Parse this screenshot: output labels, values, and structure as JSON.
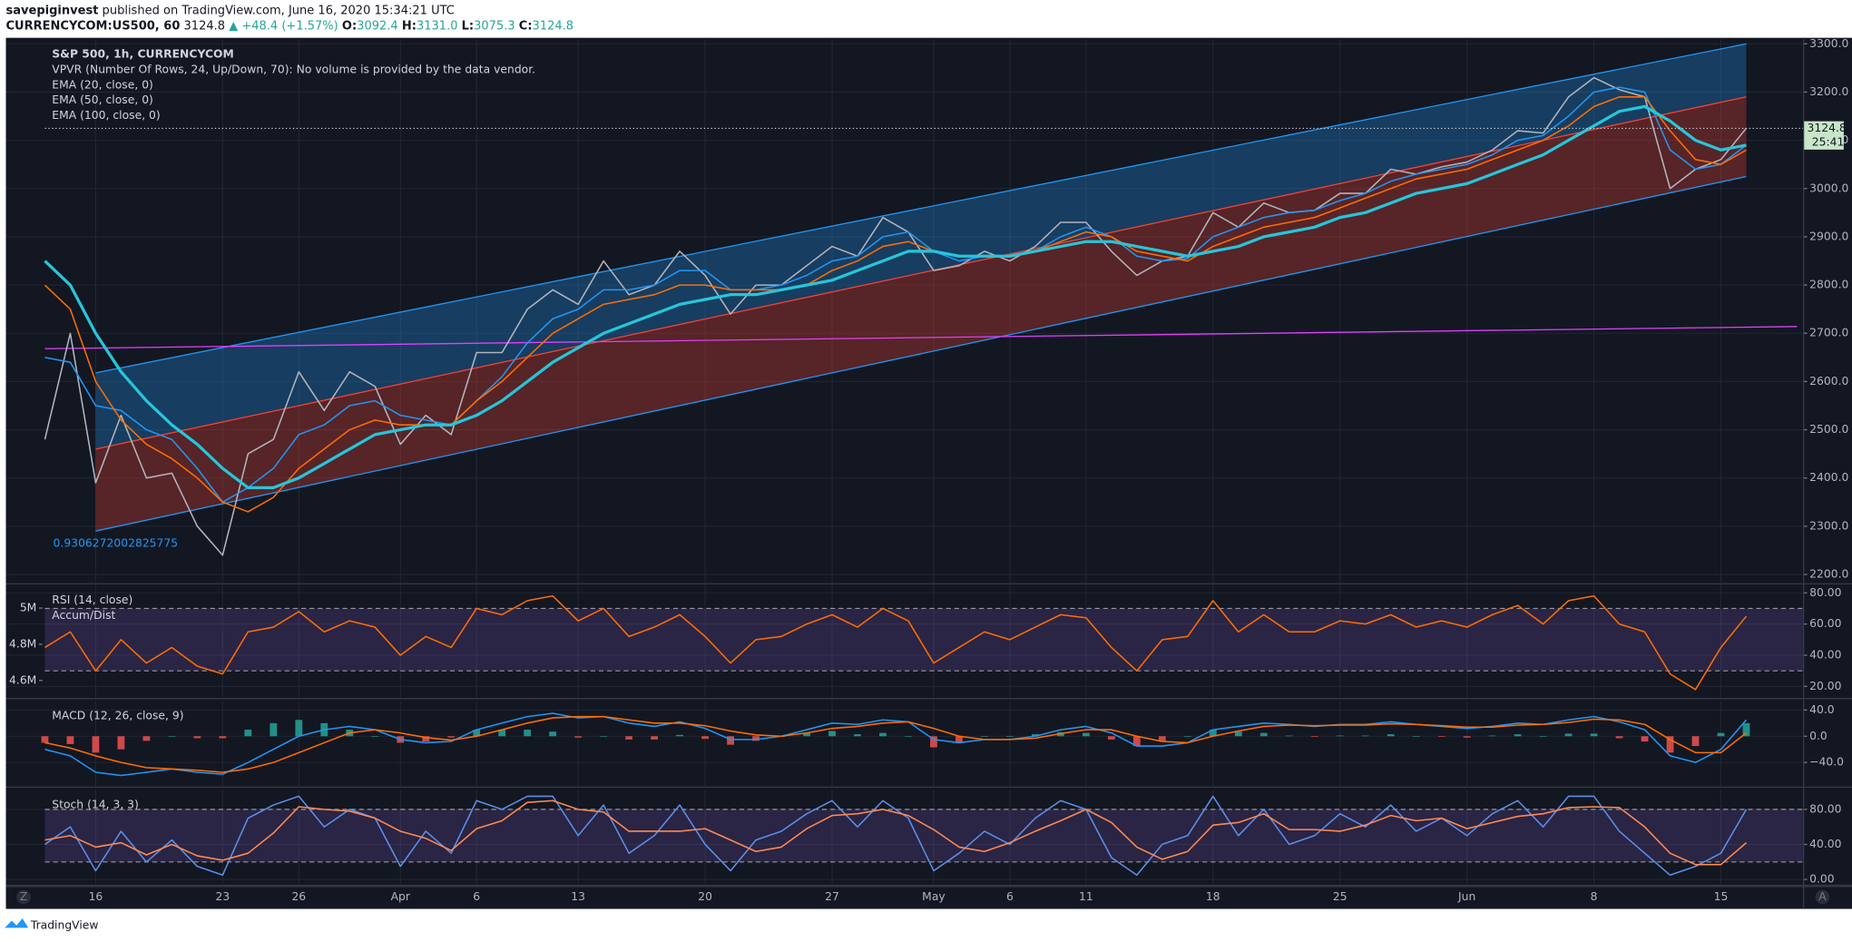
{
  "header": {
    "author": "savepiginvest",
    "published": "published on TradingView.com, June 16, 2020 15:34:21 UTC",
    "symbol": "CURRENCYCOM:US500, 60",
    "price": "3124.8",
    "change": "▲ +48.4 (+1.57%)",
    "ohlc": [
      {
        "label": "O:",
        "value": "3092.4"
      },
      {
        "label": "H:",
        "value": "3131.0"
      },
      {
        "label": "L:",
        "value": "3075.3"
      },
      {
        "label": "C:",
        "value": "3124.8"
      }
    ]
  },
  "chart_data": [
    {
      "type": "line",
      "categories": [
        null,
        null,
        "16",
        null,
        null,
        null,
        null,
        "23",
        null,
        null,
        "26",
        null,
        null,
        null,
        "Apr",
        null,
        null,
        "6",
        null,
        null,
        null,
        "13",
        null,
        null,
        null,
        null,
        "20",
        null,
        null,
        null,
        null,
        "27",
        null,
        null,
        null,
        "May",
        null,
        null,
        "6",
        null,
        null,
        "11",
        null,
        null,
        null,
        null,
        "18",
        null,
        null,
        null,
        null,
        "25",
        null,
        null,
        null,
        null,
        "Jun",
        null,
        null,
        null,
        null,
        "8",
        null,
        null,
        null,
        null,
        "15",
        null
      ],
      "series": [
        {
          "name": "S&P 500, 1h, CURRENCYCOM",
          "color": "#b0b4bd",
          "values": [
            2480,
            2700,
            2390,
            2530,
            2400,
            2410,
            2300,
            2240,
            2450,
            2480,
            2620,
            2540,
            2620,
            2590,
            2470,
            2530,
            2490,
            2660,
            2660,
            2750,
            2790,
            2760,
            2850,
            2780,
            2800,
            2870,
            2820,
            2740,
            2800,
            2800,
            2840,
            2880,
            2860,
            2940,
            2910,
            2830,
            2840,
            2870,
            2850,
            2880,
            2930,
            2930,
            2870,
            2820,
            2850,
            2860,
            2950,
            2920,
            2970,
            2950,
            2955,
            2990,
            2990,
            3040,
            3030,
            3045,
            3055,
            3080,
            3120,
            3115,
            3190,
            3230,
            3205,
            3190,
            3000,
            3040,
            3060,
            3125
          ]
        },
        {
          "name": "EMA (20, close, 0)",
          "color": "#2196f3",
          "values": [
            2650,
            2640,
            2550,
            2540,
            2500,
            2480,
            2420,
            2350,
            2380,
            2420,
            2490,
            2510,
            2550,
            2560,
            2530,
            2520,
            2510,
            2560,
            2610,
            2680,
            2730,
            2750,
            2790,
            2790,
            2800,
            2830,
            2830,
            2790,
            2790,
            2800,
            2820,
            2850,
            2860,
            2900,
            2910,
            2870,
            2850,
            2860,
            2860,
            2870,
            2900,
            2920,
            2900,
            2860,
            2850,
            2855,
            2900,
            2920,
            2940,
            2950,
            2955,
            2975,
            2990,
            3015,
            3030,
            3040,
            3050,
            3070,
            3100,
            3110,
            3150,
            3200,
            3210,
            3200,
            3080,
            3040,
            3050,
            3090
          ]
        },
        {
          "name": "EMA (50, close, 0)",
          "color": "#ff6d00",
          "values": [
            2800,
            2750,
            2600,
            2520,
            2470,
            2440,
            2400,
            2350,
            2330,
            2360,
            2420,
            2460,
            2500,
            2520,
            2510,
            2510,
            2510,
            2560,
            2600,
            2650,
            2700,
            2730,
            2760,
            2770,
            2780,
            2800,
            2800,
            2790,
            2790,
            2790,
            2800,
            2830,
            2850,
            2880,
            2890,
            2870,
            2860,
            2860,
            2860,
            2870,
            2890,
            2910,
            2900,
            2870,
            2860,
            2850,
            2880,
            2900,
            2920,
            2930,
            2940,
            2960,
            2980,
            3000,
            3020,
            3030,
            3040,
            3060,
            3080,
            3100,
            3130,
            3170,
            3190,
            3190,
            3120,
            3060,
            3050,
            3080
          ]
        },
        {
          "name": "EMA (100, close, 0)",
          "color": "#26c6da",
          "values": [
            2850,
            2800,
            2700,
            2620,
            2560,
            2510,
            2470,
            2420,
            2380,
            2380,
            2400,
            2430,
            2460,
            2490,
            2500,
            2510,
            2510,
            2530,
            2560,
            2600,
            2640,
            2670,
            2700,
            2720,
            2740,
            2760,
            2770,
            2780,
            2780,
            2790,
            2800,
            2810,
            2830,
            2850,
            2870,
            2870,
            2860,
            2860,
            2860,
            2870,
            2880,
            2890,
            2890,
            2880,
            2870,
            2860,
            2870,
            2880,
            2900,
            2910,
            2920,
            2940,
            2950,
            2970,
            2990,
            3000,
            3010,
            3030,
            3050,
            3070,
            3100,
            3130,
            3160,
            3170,
            3140,
            3100,
            3080,
            3090
          ]
        }
      ],
      "annotations": [
        "VPVR (Number Of Rows, 24, Up/Down, 70): No volume is provided by the data vendor."
      ],
      "regression_channel": {
        "x": [
          2,
          67
        ],
        "upper": [
          2618,
          3300
        ],
        "middle": [
          2460,
          3190
        ],
        "lower": [
          2290,
          3025
        ],
        "upper_color": "#2196f3",
        "lower_color": "#f44336",
        "r_label": "0.9306272002825775"
      },
      "trend_line": {
        "x": [
          0,
          69
        ],
        "values": [
          2668,
          2714
        ],
        "color": "#e040fb"
      },
      "last_price": 3124.8,
      "countdown": "25:41",
      "ylim": [
        2183,
        3310
      ],
      "yticks": [
        {
          "value": 2200,
          "label": "2200.0"
        },
        {
          "value": 2300,
          "label": "2300.0"
        },
        {
          "value": 2400,
          "label": "2400.0"
        },
        {
          "value": 2500,
          "label": "2500.0"
        },
        {
          "value": 2600,
          "label": "2600.0"
        },
        {
          "value": 2700,
          "label": "2700.0"
        },
        {
          "value": 2800,
          "label": "2800.0"
        },
        {
          "value": 2900,
          "label": "2900.0"
        },
        {
          "value": 3000,
          "label": "3000.0"
        },
        {
          "value": 3100,
          "label": "3100.0"
        },
        {
          "value": 3200,
          "label": "3200.0"
        },
        {
          "value": 3300,
          "label": "3300.0"
        }
      ],
      "grid": true
    },
    {
      "type": "line",
      "title": "RSI (14, close)",
      "subtitle": "Accum/Dist",
      "series": [
        {
          "color": "#ff6d00",
          "values": [
            45,
            55,
            30,
            50,
            35,
            45,
            33,
            28,
            55,
            58,
            68,
            55,
            62,
            58,
            40,
            52,
            45,
            70,
            66,
            75,
            78,
            62,
            70,
            52,
            58,
            66,
            52,
            35,
            50,
            52,
            60,
            66,
            58,
            70,
            62,
            35,
            45,
            55,
            50,
            58,
            66,
            64,
            45,
            30,
            50,
            52,
            75,
            55,
            66,
            55,
            55,
            62,
            60,
            66,
            58,
            62,
            58,
            66,
            72,
            60,
            75,
            78,
            60,
            55,
            28,
            18,
            45,
            65
          ]
        }
      ],
      "bands": [
        30,
        70
      ],
      "band_color": "#7e57c2",
      "ylim": [
        13,
        85
      ],
      "yticks": [
        {
          "value": 20,
          "label": "20.00"
        },
        {
          "value": 40,
          "label": "40.00"
        },
        {
          "value": 60,
          "label": "60.00"
        },
        {
          "value": 80,
          "label": "80.00"
        }
      ],
      "y2lim": [
        4507000,
        5127000
      ],
      "y2ticks": [
        {
          "value": 4600000,
          "label": "4.6M"
        },
        {
          "value": 4800000,
          "label": "4.8M"
        },
        {
          "value": 5000000,
          "label": "5M"
        }
      ],
      "grid": true
    },
    {
      "type": "line",
      "title": "MACD (12, 26, close, 9)",
      "series": [
        {
          "type": "bar",
          "color": "#26a69a",
          "negative_color": "#ef5350",
          "values": [
            -10,
            -12,
            -25,
            -20,
            -7,
            0,
            -3,
            -3,
            10,
            20,
            25,
            20,
            10,
            0,
            -10,
            -8,
            -2,
            10,
            10,
            10,
            7,
            -2,
            0,
            -5,
            -5,
            2,
            -4,
            -13,
            -7,
            0,
            5,
            8,
            3,
            5,
            0,
            -17,
            -10,
            0,
            0,
            3,
            6,
            5,
            -5,
            -15,
            -7,
            0,
            10,
            7,
            5,
            1,
            -1,
            1,
            1,
            3,
            0,
            -1,
            -2,
            1,
            3,
            0,
            4,
            4,
            -3,
            -8,
            -25,
            -15,
            5,
            20
          ]
        },
        {
          "color": "#2196f3",
          "values": [
            -20,
            -30,
            -55,
            -60,
            -55,
            -50,
            -55,
            -58,
            -40,
            -20,
            0,
            10,
            15,
            10,
            -5,
            -10,
            -8,
            10,
            20,
            30,
            35,
            28,
            30,
            20,
            15,
            22,
            12,
            -5,
            -5,
            0,
            10,
            20,
            18,
            25,
            22,
            -5,
            -10,
            -5,
            -5,
            0,
            10,
            15,
            5,
            -15,
            -15,
            -10,
            10,
            15,
            20,
            18,
            15,
            18,
            18,
            22,
            18,
            15,
            12,
            15,
            20,
            18,
            25,
            30,
            22,
            10,
            -30,
            -40,
            -20,
            25
          ]
        },
        {
          "color": "#ff6d00",
          "values": [
            -10,
            -18,
            -30,
            -40,
            -48,
            -50,
            -52,
            -55,
            -50,
            -40,
            -25,
            -10,
            5,
            10,
            5,
            -2,
            -6,
            0,
            10,
            20,
            28,
            30,
            30,
            25,
            20,
            20,
            16,
            8,
            2,
            0,
            5,
            12,
            15,
            20,
            22,
            12,
            0,
            -5,
            -5,
            -3,
            4,
            10,
            10,
            0,
            -8,
            -10,
            0,
            8,
            15,
            17,
            16,
            17,
            17,
            19,
            18,
            16,
            14,
            14,
            17,
            18,
            21,
            26,
            25,
            18,
            -5,
            -25,
            -25,
            5
          ]
        }
      ],
      "ylim": [
        -76,
        54
      ],
      "yticks": [
        {
          "value": -40,
          "label": "−40.0"
        },
        {
          "value": 0,
          "label": "0.0"
        },
        {
          "value": 40,
          "label": "40.0"
        }
      ],
      "grid": true
    },
    {
      "type": "line",
      "title": "Stoch (14, 3, 3)",
      "series": [
        {
          "color": "#5c8ee6",
          "values": [
            40,
            60,
            10,
            55,
            20,
            45,
            15,
            5,
            70,
            85,
            95,
            60,
            80,
            70,
            15,
            55,
            30,
            90,
            80,
            95,
            95,
            50,
            85,
            30,
            50,
            85,
            40,
            10,
            45,
            55,
            75,
            90,
            60,
            90,
            70,
            10,
            30,
            55,
            40,
            70,
            90,
            80,
            25,
            5,
            40,
            50,
            95,
            50,
            80,
            40,
            50,
            75,
            60,
            85,
            55,
            70,
            50,
            75,
            90,
            60,
            95,
            95,
            55,
            30,
            5,
            15,
            30,
            80
          ]
        },
        {
          "color": "#ff8a50",
          "values": [
            45,
            50,
            37,
            42,
            28,
            40,
            27,
            22,
            30,
            53,
            83,
            80,
            78,
            70,
            55,
            47,
            33,
            58,
            67,
            88,
            90,
            80,
            77,
            55,
            55,
            55,
            58,
            45,
            32,
            37,
            58,
            73,
            75,
            80,
            73,
            57,
            37,
            32,
            42,
            55,
            67,
            80,
            65,
            37,
            23,
            32,
            62,
            65,
            75,
            57,
            57,
            55,
            62,
            73,
            67,
            70,
            58,
            65,
            72,
            75,
            82,
            83,
            82,
            60,
            30,
            17,
            17,
            42
          ]
        }
      ],
      "bands": [
        20,
        80
      ],
      "band_color": "#7e57c2",
      "ylim": [
        -5.3,
        102.7
      ],
      "yticks": [
        {
          "value": 0,
          "label": "0.00"
        },
        {
          "value": 40,
          "label": "40.00"
        },
        {
          "value": 80,
          "label": "80.00"
        }
      ],
      "grid": true
    }
  ],
  "axis_buttons": [
    "Z",
    "A"
  ],
  "footer": {
    "brand": "TradingView"
  }
}
